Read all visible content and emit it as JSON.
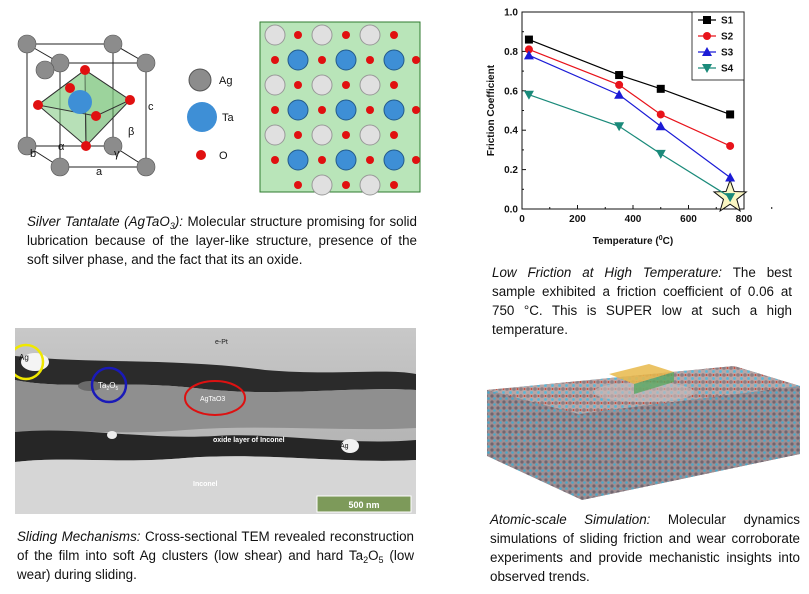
{
  "panels": {
    "structure": {
      "labels": {
        "a": "a",
        "b": "b",
        "c": "c",
        "alpha": "α",
        "beta": "β",
        "gamma": "γ"
      },
      "legend": [
        {
          "name": "Ag",
          "color": "#8c8c8c"
        },
        {
          "name": "Ta",
          "color": "#3e8fd6"
        },
        {
          "name": "O",
          "color": "#e01010"
        }
      ],
      "caption": {
        "title_pre": "Silver Tantalate (AgTaO",
        "title_sub": "3",
        "title_post": "):",
        "text": " Molecular structure promising for solid lubrication because of the layer-like structure, presence of the soft silver phase, and the fact that its an oxide."
      }
    },
    "friction": {
      "caption": {
        "title": "Low Friction at High Temperature:",
        "text": " The best sample exhibited a friction coefficient of 0.06 at 750 °C. This is SUPER low at such a high temperature."
      }
    },
    "tem": {
      "labels": {
        "ept": "e-Pt",
        "ag1": "Ag",
        "ta2o5_pre": "Ta",
        "ta2o5_sub1": "2",
        "ta2o5_mid": "O",
        "ta2o5_sub2": "5",
        "agtao3": "AgTaO3",
        "oxide": "oxide layer of Inconel",
        "ag2": "Ag",
        "inconel": "Inconel",
        "scale": "500 nm"
      },
      "caption": {
        "title": "Sliding Mechanisms:",
        "text": " Cross-sectional TEM revealed reconstruction of the film into soft Ag clusters (low shear) and hard ",
        "ta_pre": "Ta",
        "ta_sub1": "2",
        "ta_mid": "O",
        "ta_sub2": "5",
        "text_end": " (low wear) during sliding."
      }
    },
    "simulation": {
      "caption": {
        "title": "Atomic-scale Simulation:",
        "text": " Molecular dynamics simulations of sliding friction and wear corroborate experiments and provide mechanistic insights into observed trends."
      }
    }
  },
  "chart_data": {
    "type": "line",
    "xlabel": "Temperature (°C)",
    "xlabel_pre": "Temperature (",
    "xlabel_sup": "0",
    "xlabel_post": "C)",
    "ylabel": "Friction Coefficient",
    "xlim": [
      0,
      800
    ],
    "ylim": [
      0,
      1.0
    ],
    "xticks": [
      "0",
      "200",
      "400",
      "600",
      "800"
    ],
    "yticks": [
      "0.0",
      "0.2",
      "0.4",
      "0.6",
      "0.8",
      "1.0"
    ],
    "legend_position": "top-right",
    "series": [
      {
        "name": "S1",
        "color": "#000000",
        "marker": "square",
        "x": [
          25,
          350,
          500,
          750
        ],
        "y": [
          0.86,
          0.68,
          0.61,
          0.48
        ]
      },
      {
        "name": "S2",
        "color": "#e8131b",
        "marker": "circle",
        "x": [
          25,
          350,
          500,
          750
        ],
        "y": [
          0.81,
          0.63,
          0.48,
          0.32
        ]
      },
      {
        "name": "S3",
        "color": "#1b1bd6",
        "marker": "triangle-up",
        "x": [
          25,
          350,
          500,
          750
        ],
        "y": [
          0.78,
          0.58,
          0.42,
          0.16
        ]
      },
      {
        "name": "S4",
        "color": "#1a8a7a",
        "marker": "triangle-down",
        "x": [
          25,
          350,
          500,
          750
        ],
        "y": [
          0.58,
          0.42,
          0.28,
          0.06
        ]
      }
    ],
    "highlight": {
      "x": 750,
      "y": 0.06,
      "color": "#fbf7c2"
    }
  }
}
